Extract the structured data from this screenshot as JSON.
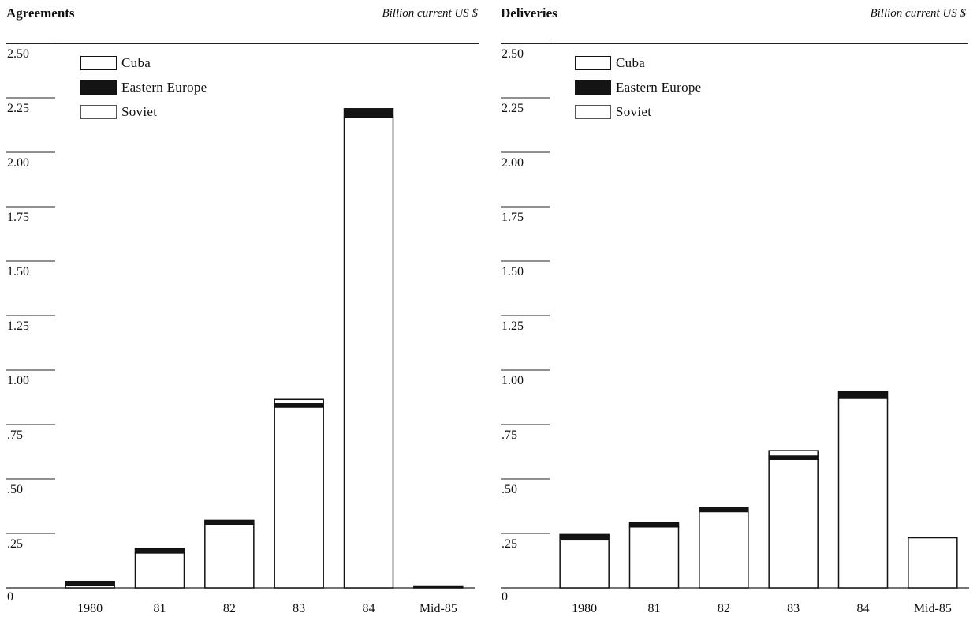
{
  "legend_entries": [
    "Cuba",
    "Eastern Europe",
    "Soviet"
  ],
  "colors": {
    "cuba": "#ffffff",
    "eastern_europe": "#141414",
    "soviet": "#ffffff",
    "outline": "#111111"
  },
  "chart_data": [
    {
      "type": "bar",
      "stacked": true,
      "title": "Agreements",
      "unit": "Billion current US $",
      "categories": [
        "1980",
        "81",
        "82",
        "83",
        "84",
        "Mid-85"
      ],
      "y_tick_labels": [
        "0",
        ".25",
        ".50",
        ".75",
        "1.00",
        "1.25",
        "1.50",
        "1.75",
        "2.00",
        "2.25",
        "2.50"
      ],
      "ylim": [
        0,
        2.5
      ],
      "legend_position": "top-left",
      "series": [
        {
          "name": "Soviet",
          "values": [
            0.01,
            0.16,
            0.29,
            0.83,
            2.16,
            0.0
          ]
        },
        {
          "name": "Eastern Europe",
          "values": [
            0.02,
            0.02,
            0.02,
            0.015,
            0.04,
            0.004
          ]
        },
        {
          "name": "Cuba",
          "values": [
            0.0,
            0.0,
            0.0,
            0.02,
            0.0,
            0.0
          ]
        }
      ]
    },
    {
      "type": "bar",
      "stacked": true,
      "title": "Deliveries",
      "unit": "Billion current US $",
      "categories": [
        "1980",
        "81",
        "82",
        "83",
        "84",
        "Mid-85"
      ],
      "y_tick_labels": [
        "0",
        ".25",
        ".50",
        ".75",
        "1.00",
        "1.25",
        "1.50",
        "1.75",
        "2.00",
        "2.25",
        "2.50"
      ],
      "ylim": [
        0,
        2.5
      ],
      "legend_position": "top-left",
      "series": [
        {
          "name": "Soviet",
          "values": [
            0.22,
            0.28,
            0.35,
            0.59,
            0.87,
            0.23
          ]
        },
        {
          "name": "Eastern Europe",
          "values": [
            0.025,
            0.02,
            0.02,
            0.015,
            0.03,
            0.0
          ]
        },
        {
          "name": "Cuba",
          "values": [
            0.0,
            0.0,
            0.0,
            0.025,
            0.0,
            0.0
          ]
        }
      ]
    }
  ]
}
